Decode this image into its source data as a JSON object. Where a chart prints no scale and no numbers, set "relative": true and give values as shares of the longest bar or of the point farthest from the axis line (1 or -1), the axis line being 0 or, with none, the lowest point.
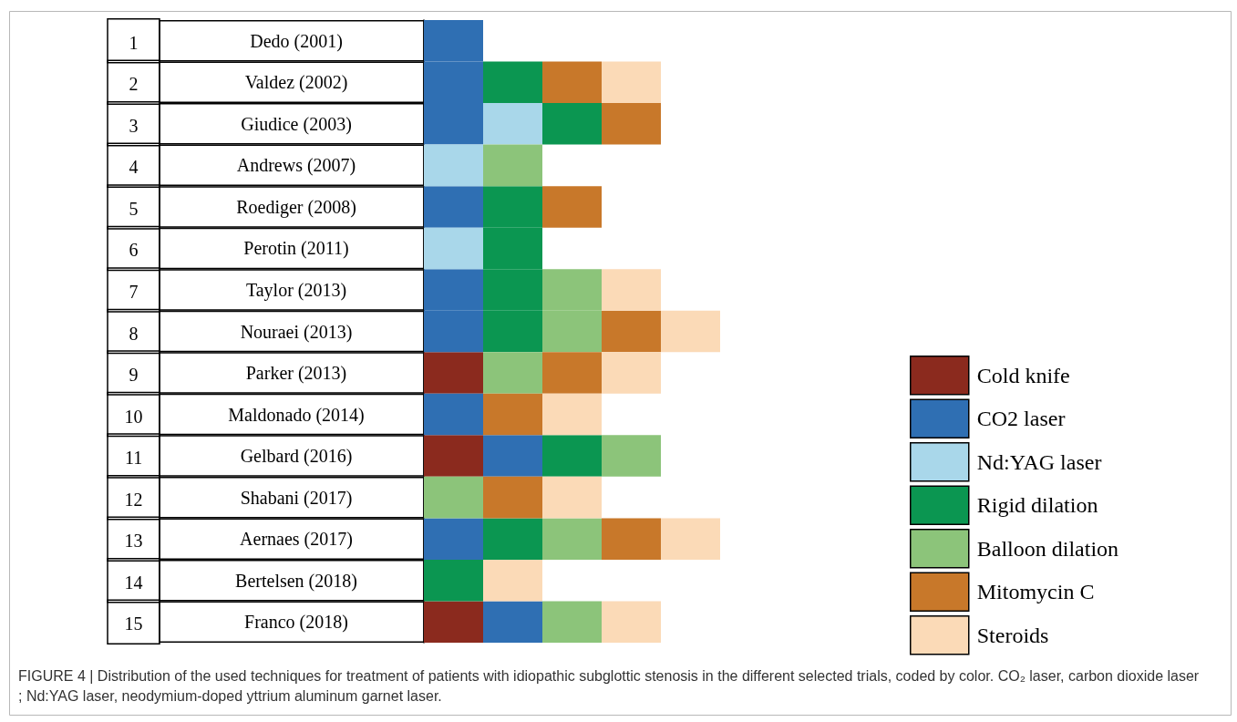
{
  "chart_data": {
    "type": "bar",
    "orientation": "horizontal",
    "stacked": true,
    "relative": true,
    "legend": "bottom right",
    "categories": [
      "1 Dedo (2001)",
      "2 Valdez (2002)",
      "3 Giudice (2003)",
      "4 Andrews (2007)",
      "5 Roediger (2008)",
      "6 Perotin (2011)",
      "7 Taylor (2013)",
      "8 Nouraei (2013)",
      "9 Parker (2013)",
      "10 Maldonado (2014)",
      "11 Gelbard (2016)",
      "12 Shabani (2017)",
      "13 Aernaes (2017)",
      "14 Bertelsen (2018)",
      "15 Franco (2018)"
    ],
    "series": [
      {
        "name": "Cold knife",
        "color": "#8b2a1e",
        "values": [
          null,
          null,
          null,
          null,
          null,
          null,
          null,
          null,
          0.2,
          null,
          0.2,
          null,
          null,
          null,
          0.2
        ]
      },
      {
        "name": "CO2 laser",
        "color": "#2f6fb3",
        "values": [
          0.2,
          0.2,
          0.2,
          null,
          0.2,
          null,
          0.2,
          0.2,
          null,
          0.2,
          0.2,
          null,
          0.2,
          null,
          0.2
        ]
      },
      {
        "name": "Nd:YAG laser",
        "color": "#a9d7ea",
        "values": [
          null,
          null,
          0.2,
          0.2,
          null,
          0.2,
          null,
          null,
          null,
          null,
          null,
          null,
          null,
          null,
          null
        ]
      },
      {
        "name": "Rigid dilation",
        "color": "#0b9651",
        "values": [
          null,
          0.2,
          0.2,
          null,
          0.2,
          0.2,
          0.2,
          0.2,
          null,
          null,
          0.2,
          null,
          0.2,
          0.2,
          null
        ]
      },
      {
        "name": "Balloon dilation",
        "color": "#8cc47a",
        "values": [
          null,
          null,
          null,
          0.2,
          null,
          null,
          0.2,
          0.2,
          0.2,
          null,
          0.2,
          0.2,
          0.2,
          null,
          0.2
        ]
      },
      {
        "name": "Mitomycin C",
        "color": "#c8782a",
        "values": [
          null,
          0.2,
          0.2,
          null,
          0.2,
          null,
          null,
          0.2,
          0.2,
          0.2,
          null,
          0.2,
          0.2,
          null,
          null
        ]
      },
      {
        "name": "Steroids",
        "color": "#fbdab7",
        "values": [
          null,
          0.2,
          null,
          null,
          null,
          null,
          0.2,
          0.2,
          0.2,
          0.2,
          null,
          0.2,
          0.2,
          0.2,
          0.2
        ]
      }
    ],
    "annotations": [
      "FIGURE 4 | Distribution of the used techniques for treatment of patients with idiopathic subglottic stenosis in the different selected trials, coded by color. CO₂ laser, carbon dioxide laser; Nd:YAG laser, neodymium-doped yttrium aluminum garnet laser."
    ]
  }
}
